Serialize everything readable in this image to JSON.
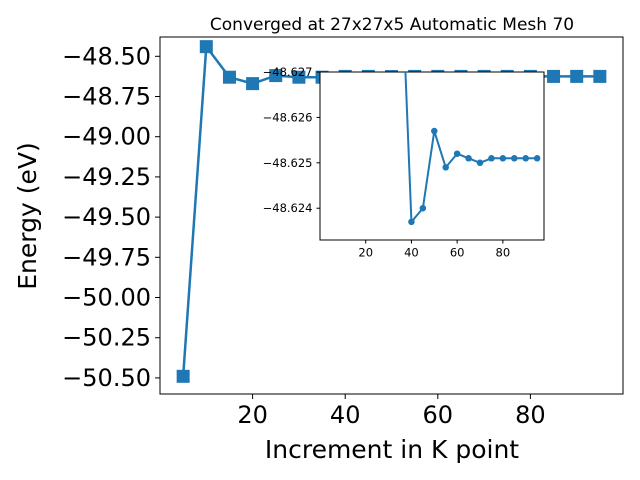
{
  "chart_data": [
    {
      "type": "line",
      "title": "Converged at 27x27x5 Automatic Mesh 70",
      "xlabel": "Increment in K point",
      "ylabel": "Energy (eV)",
      "xlim": [
        0,
        100
      ],
      "ylim": [
        -50.6,
        -48.38
      ],
      "xticks": [
        20,
        40,
        60,
        80
      ],
      "yticks": [
        -48.5,
        -48.75,
        -49.0,
        -49.25,
        -49.5,
        -49.75,
        -50.0,
        -50.25,
        -50.5
      ],
      "xtick_labels": [
        "20",
        "40",
        "60",
        "80"
      ],
      "ytick_labels": [
        "−48.50",
        "−48.75",
        "−49.00",
        "−49.25",
        "−49.50",
        "−49.75",
        "−50.00",
        "−50.25",
        "−50.50"
      ],
      "grid": false,
      "marker": "square",
      "color": "#1f77b4",
      "series": [
        {
          "x": [
            5,
            10,
            15,
            20,
            25,
            30,
            35,
            40,
            45,
            50,
            55,
            60,
            65,
            70,
            75,
            80,
            85,
            90,
            95
          ],
          "y": [
            -50.49,
            -48.44,
            -48.63,
            -48.67,
            -48.62,
            -48.63,
            -48.63,
            -48.625,
            -48.625,
            -48.626,
            -48.625,
            -48.625,
            -48.625,
            -48.625,
            -48.625,
            -48.625,
            -48.625,
            -48.625,
            -48.625
          ]
        }
      ]
    },
    {
      "type": "line",
      "title": "",
      "xlabel": "",
      "ylabel": "",
      "xlim": [
        0,
        98
      ],
      "ylim": [
        -48.6233,
        -48.627
      ],
      "xticks": [
        20,
        40,
        60,
        80
      ],
      "yticks": [
        -48.627,
        -48.626,
        -48.625,
        -48.624
      ],
      "xtick_labels": [
        "20",
        "40",
        "60",
        "80"
      ],
      "ytick_labels": [
        "−48.627",
        "−48.626",
        "−48.625",
        "−48.624"
      ],
      "grid": false,
      "marker": "circle",
      "color": "#1f77b4",
      "series": [
        {
          "x": [
            35,
            40,
            45,
            50,
            55,
            60,
            65,
            70,
            75,
            80,
            85,
            90,
            95
          ],
          "y": [
            -48.63,
            -48.6237,
            -48.624,
            -48.6257,
            -48.6249,
            -48.6252,
            -48.6251,
            -48.625,
            -48.6251,
            -48.6251,
            -48.6251,
            -48.6251,
            -48.6251
          ]
        }
      ]
    }
  ]
}
